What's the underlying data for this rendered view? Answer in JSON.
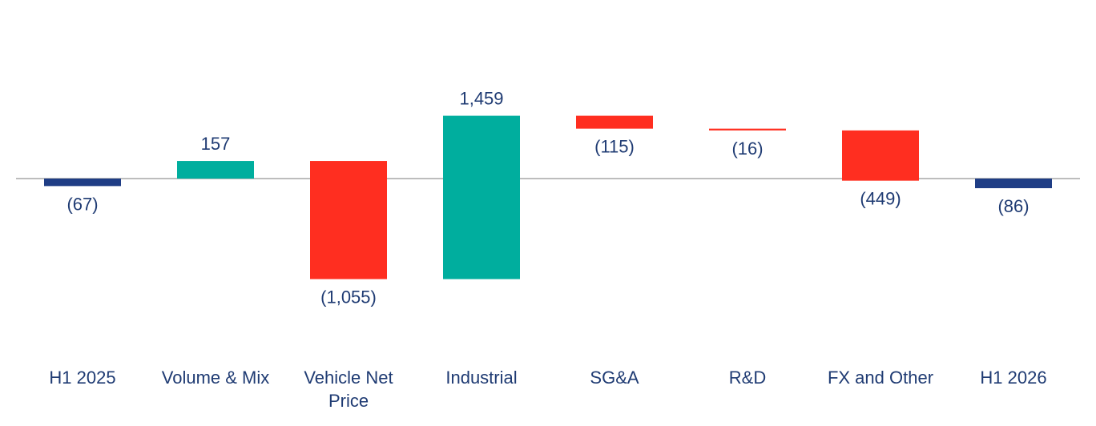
{
  "chart_data": {
    "type": "waterfall",
    "categories": [
      [
        "H1 2025"
      ],
      [
        "Volume & Mix"
      ],
      [
        "Vehicle Net",
        "Price"
      ],
      [
        "Industrial"
      ],
      [
        "SG&A"
      ],
      [
        "R&D"
      ],
      [
        "FX and Other"
      ],
      [
        "H1 2026"
      ]
    ],
    "values": [
      -67,
      157,
      -1055,
      1459,
      -115,
      -16,
      -449,
      -86
    ],
    "kinds": [
      "total",
      "delta",
      "delta",
      "delta",
      "delta",
      "delta",
      "delta",
      "total"
    ],
    "value_labels": [
      "(67)",
      "157",
      "(1,055)",
      "1,459",
      "(115)",
      "(16)",
      "(449)",
      "(86)"
    ],
    "colors": {
      "total": "#1f3d85",
      "increase": "#00ae9e",
      "decrease": "#ff2e20",
      "axis": "#bdbdbd",
      "text": "#1f3b73"
    },
    "baseline": 0,
    "legend": "none",
    "grid": false
  }
}
